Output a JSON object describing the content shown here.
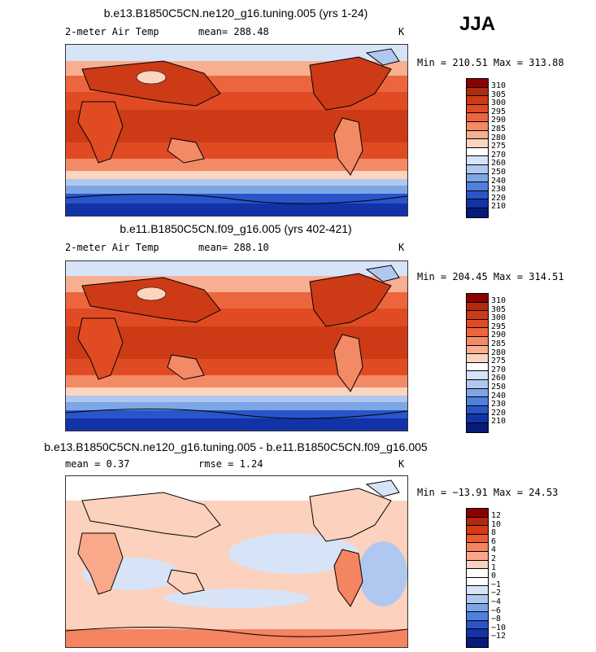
{
  "season": "JJA",
  "panels": [
    {
      "title": "b.e13.B1850C5CN.ne120_g16.tuning.005 (yrs 1-24)",
      "left_label": "2-meter Air Temp",
      "center_label": "mean= 288.48",
      "unit": "K",
      "minmax": "Min = 210.51 Max = 313.88",
      "colorbar": [
        "310",
        "305",
        "300",
        "295",
        "290",
        "285",
        "280",
        "275",
        "270",
        "260",
        "250",
        "240",
        "230",
        "220",
        "210"
      ]
    },
    {
      "title": "b.e11.B1850C5CN.f09_g16.005 (yrs 402-421)",
      "left_label": "2-meter Air Temp",
      "center_label": "mean= 288.10",
      "unit": "K",
      "minmax": "Min = 204.45 Max = 314.51",
      "colorbar": [
        "310",
        "305",
        "300",
        "295",
        "290",
        "285",
        "280",
        "275",
        "270",
        "260",
        "250",
        "240",
        "230",
        "220",
        "210"
      ]
    },
    {
      "title": "b.e13.B1850C5CN.ne120_g16.tuning.005 - b.e11.B1850C5CN.f09_g16.005",
      "left_label": "mean =   0.37",
      "center_label": "rmse =   1.24",
      "unit": "K",
      "minmax": "Min = −13.91 Max =  24.53",
      "colorbar": [
        "12",
        "10",
        "8",
        "6",
        "4",
        "2",
        "1",
        "0",
        "−1",
        "−2",
        "−4",
        "−6",
        "−8",
        "−10",
        "−12"
      ]
    }
  ],
  "colors": {
    "abs_scale": [
      "#8b0000",
      "#b22a0e",
      "#cc3a16",
      "#e04b24",
      "#ec653c",
      "#f38a66",
      "#f8ae90",
      "#fcd5c0",
      "#ffffff",
      "#d7e3f7",
      "#b0c8f0",
      "#7da6e6",
      "#4f80dc",
      "#2a55c8",
      "#1232a8",
      "#061a7a"
    ],
    "diff_scale": [
      "#8b0000",
      "#b22a0e",
      "#d43a16",
      "#ee5a30",
      "#f58460",
      "#f9a98a",
      "#fcd1bd",
      "#ffffff",
      "#ffffff",
      "#d7e3f7",
      "#b0c8f0",
      "#7da6e6",
      "#4f80dc",
      "#2a55c8",
      "#1232a8",
      "#061a7a"
    ]
  }
}
